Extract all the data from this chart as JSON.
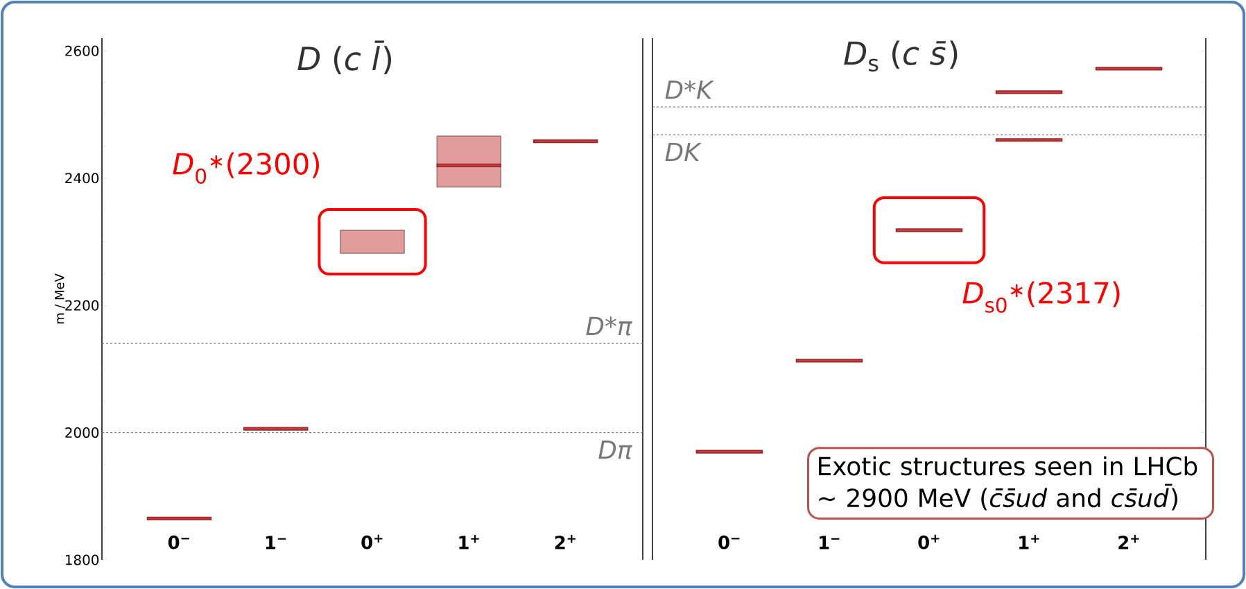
{
  "chart_data": [
    {
      "type": "bar",
      "title": "*D* (*c* *l̄*)",
      "ylabel": "m / MeV",
      "categories": [
        "0$^{−}$",
        "1$^{−}$",
        "0$^{+}$",
        "1$^{+}$",
        "2$^{+}$"
      ],
      "series": [
        {
          "color": "#e39c9c",
          "base": [
            null,
            null,
            2282,
            2386,
            null
          ],
          "values": [
            null,
            null,
            36,
            80,
            null
          ]
        },
        {
          "color": "#d03a3a",
          "base": [
            1863,
            2004,
            null,
            2418,
            2456
          ],
          "values": [
            4,
            4,
            null,
            4,
            4
          ]
        }
      ],
      "ylim": [
        1800,
        2620
      ],
      "yticks": [
        1800,
        2000,
        2200,
        2400,
        2600
      ],
      "ref_lines": [
        {
          "axis": "y",
          "value": 2000,
          "label": "Dπ"
        },
        {
          "axis": "y",
          "value": 2140,
          "label": "D*π"
        }
      ],
      "annotations": [
        "*D*$_{0}$$^{∗}$(2300)"
      ]
    },
    {
      "type": "bar",
      "title": "*D*$_{s}$ (*c* *s̄*)",
      "categories": [
        "0$^{−}$",
        "1$^{−}$",
        "0$^{+}$",
        "1$^{+}$",
        "2$^{+}$"
      ],
      "series": [
        {
          "color": "#d03a3a",
          "base": [
            1968,
            2111,
            2316,
            2458,
            2570
          ],
          "values": [
            4,
            4,
            4,
            4,
            4
          ]
        },
        {
          "color": "#d03a3a",
          "base": [
            null,
            null,
            null,
            2533,
            null
          ],
          "values": [
            null,
            null,
            null,
            4,
            null
          ]
        }
      ],
      "ylim": [
        1800,
        2620
      ],
      "yticks": [
        1800,
        2000,
        2200,
        2400,
        2600
      ],
      "tick_labels": "x",
      "ref_lines": [
        {
          "axis": "y",
          "value": 2468,
          "label": "DK"
        },
        {
          "axis": "y",
          "value": 2512,
          "label": "D*K"
        }
      ],
      "annotations": [
        "*D*$_{s0}$$^{∗}$(2317)",
        "Exotic structures seen in LHCb ~ 2900 MeV (*c̄s̄ud* and *cs̄ud̄*)"
      ]
    }
  ]
}
